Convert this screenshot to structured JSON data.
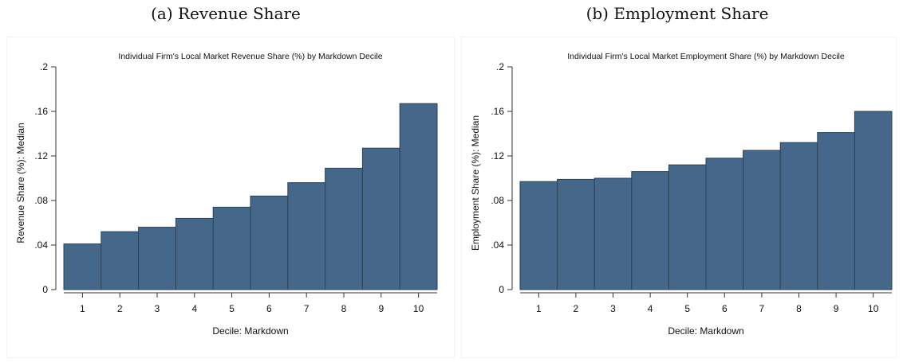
{
  "captions": {
    "a": "(a) Revenue Share",
    "b": "(b) Employment Share"
  },
  "colors": {
    "bar": "#456789",
    "bar_edge": "#2c4358"
  },
  "chart_data": [
    {
      "type": "bar",
      "title": "Individual Firm's Local Market Revenue Share (%) by Markdown Decile",
      "xlabel": "Decile: Markdown",
      "ylabel": "Revenue Share (%): Median",
      "categories": [
        "1",
        "2",
        "3",
        "4",
        "5",
        "6",
        "7",
        "8",
        "9",
        "10"
      ],
      "values": [
        0.041,
        0.052,
        0.056,
        0.064,
        0.074,
        0.084,
        0.096,
        0.109,
        0.127,
        0.167
      ],
      "ylim": [
        0,
        0.2
      ],
      "yticks": [
        0,
        0.04,
        0.08,
        0.12,
        0.16,
        0.2
      ],
      "ytick_labels": [
        "0",
        ".04",
        ".08",
        ".12",
        ".16",
        ".2"
      ],
      "grid": false
    },
    {
      "type": "bar",
      "title": "Individual Firm's Local Market Employment Share (%) by Markdown Decile",
      "xlabel": "Decile: Markdown",
      "ylabel": "Employment Share (%): Median",
      "categories": [
        "1",
        "2",
        "3",
        "4",
        "5",
        "6",
        "7",
        "8",
        "9",
        "10"
      ],
      "values": [
        0.097,
        0.099,
        0.1,
        0.106,
        0.112,
        0.118,
        0.125,
        0.132,
        0.141,
        0.16
      ],
      "ylim": [
        0,
        0.2
      ],
      "yticks": [
        0,
        0.04,
        0.08,
        0.12,
        0.16,
        0.2
      ],
      "ytick_labels": [
        "0",
        ".04",
        ".08",
        ".12",
        ".16",
        ".2"
      ],
      "grid": false
    }
  ]
}
